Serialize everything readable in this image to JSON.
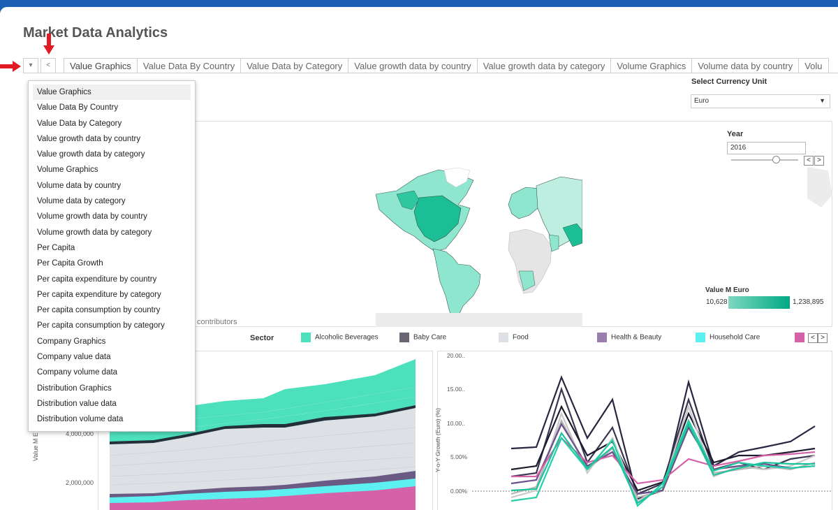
{
  "app": {
    "title": "Market Data Analytics"
  },
  "tabs": [
    "Value Graphics",
    "Value Data By Country",
    "Value Data by Category",
    "Value growth data by country",
    "Value growth data by category",
    "Volume Graphics",
    "Volume data by country",
    "Volu"
  ],
  "tab_controls": {
    "dropdown_glyph": "▾",
    "prev_glyph": "<"
  },
  "currency": {
    "label": "Select Currency Unit",
    "value": "Euro"
  },
  "year_filter": {
    "label": "Year",
    "value": "2016",
    "prev": "<",
    "next": ">"
  },
  "map_legend": {
    "title": "Value M Euro",
    "min": "10,628",
    "max": "1,238,895",
    "low_color": "#7fd8c0",
    "high_color": "#00a884"
  },
  "contributors_text": "contributors",
  "sector_legend": {
    "label": "Sector",
    "items": [
      {
        "name": "Alcoholic Beverages",
        "color": "#4de0bc"
      },
      {
        "name": "Baby Care",
        "color": "#6b6472"
      },
      {
        "name": "Food",
        "color": "#dde0e4"
      },
      {
        "name": "Health & Beauty",
        "color": "#9a7fae"
      },
      {
        "name": "Household Care",
        "color": "#5cf0f0"
      },
      {
        "name": "",
        "color": "#d562a8"
      }
    ]
  },
  "left_chart": {
    "ylabel": "Value M E",
    "ticks": [
      "4,000,000",
      "2,000,000"
    ]
  },
  "right_chart": {
    "ylabel": "Y-o-Y Growth (Euro) (%)",
    "ticks": [
      "20.00..",
      "15.00..",
      "10.00..",
      "5.00%",
      "0.00%"
    ]
  },
  "dropdown": {
    "selected_index": 0,
    "items": [
      "Value Graphics",
      "Value Data By Country",
      "Value Data by Category",
      "Value growth data by country",
      "Value growth data by category",
      "Volume Graphics",
      "Volume data by country",
      "Volume data by category",
      "Volume growth data by country",
      "Volume growth data by category",
      "Per Capita",
      "Per Capita Growth",
      "Per capita expenditure by country",
      "Per capita expenditure by category",
      "Per capita consumption by country",
      "Per capita consumption by category",
      "Company Graphics",
      "Company value data",
      "Company volume data",
      "Distribution Graphics",
      "Distribution value data",
      "Distribution volume data"
    ]
  }
}
